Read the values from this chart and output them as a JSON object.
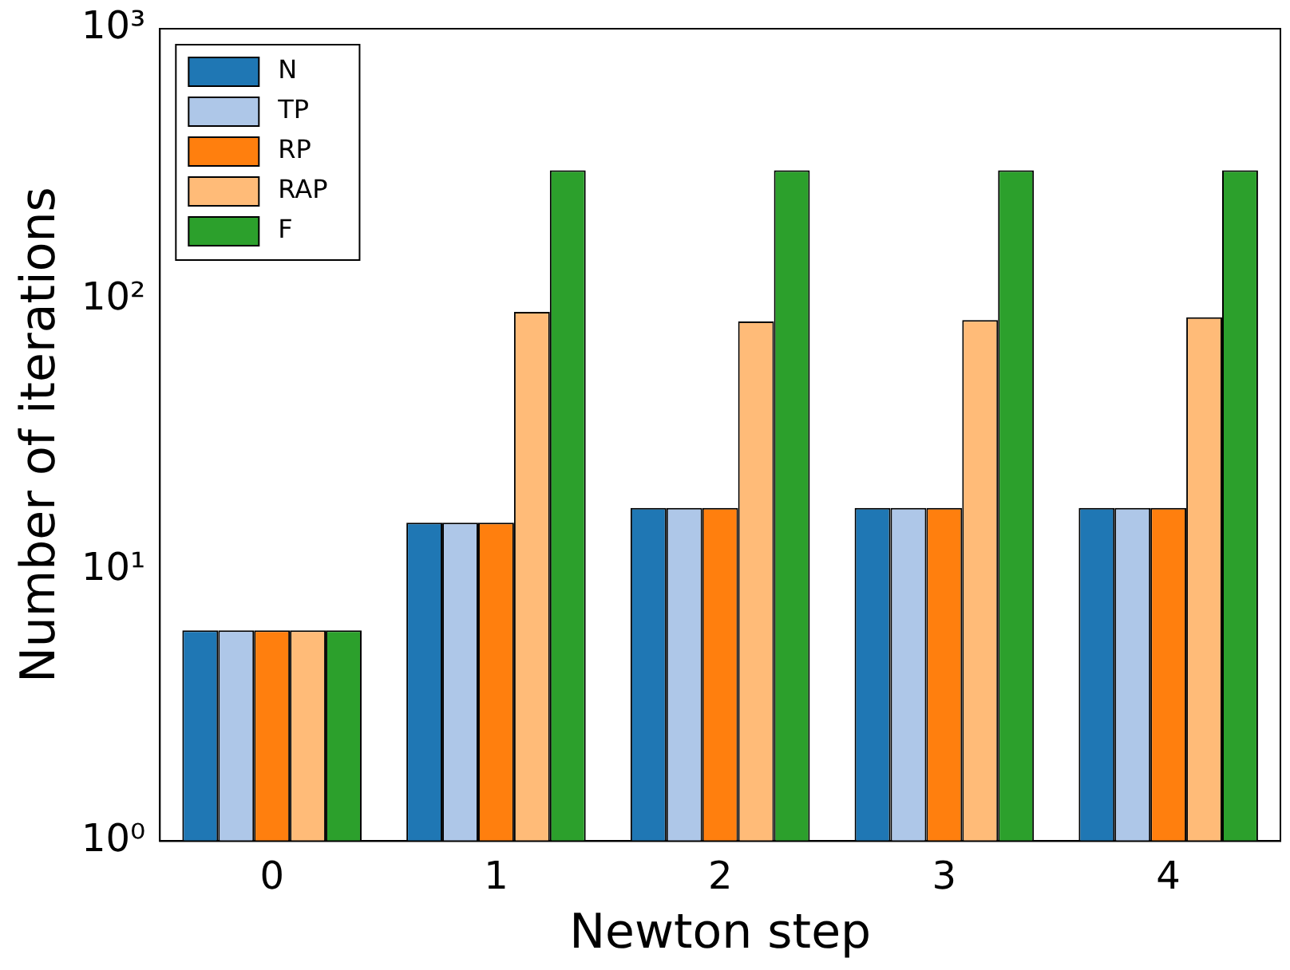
{
  "chart_data": {
    "type": "bar",
    "xlabel": "Newton step",
    "ylabel": "Number of iterations",
    "categories": [
      "0",
      "1",
      "2",
      "3",
      "4"
    ],
    "series": [
      {
        "name": "N",
        "color": "#1f77b4",
        "values": [
          6,
          15,
          17,
          17,
          17
        ]
      },
      {
        "name": "TP",
        "color": "#aec7e8",
        "values": [
          6,
          15,
          17,
          17,
          17
        ]
      },
      {
        "name": "RP",
        "color": "#ff7f0e",
        "values": [
          6,
          15,
          17,
          17,
          17
        ]
      },
      {
        "name": "RAP",
        "color": "#ffbb78",
        "values": [
          6,
          90,
          83,
          84,
          86
        ]
      },
      {
        "name": "F",
        "color": "#2ca02c",
        "values": [
          6,
          300,
          300,
          300,
          300
        ]
      }
    ],
    "log": true,
    "ylim": [
      1,
      1000
    ],
    "yticks": [
      {
        "value": 1,
        "label": "10⁰"
      },
      {
        "value": 10,
        "label": "10¹"
      },
      {
        "value": 100,
        "label": "10²"
      },
      {
        "value": 1000,
        "label": "10³"
      }
    ],
    "grid": false,
    "legend": "top left"
  }
}
